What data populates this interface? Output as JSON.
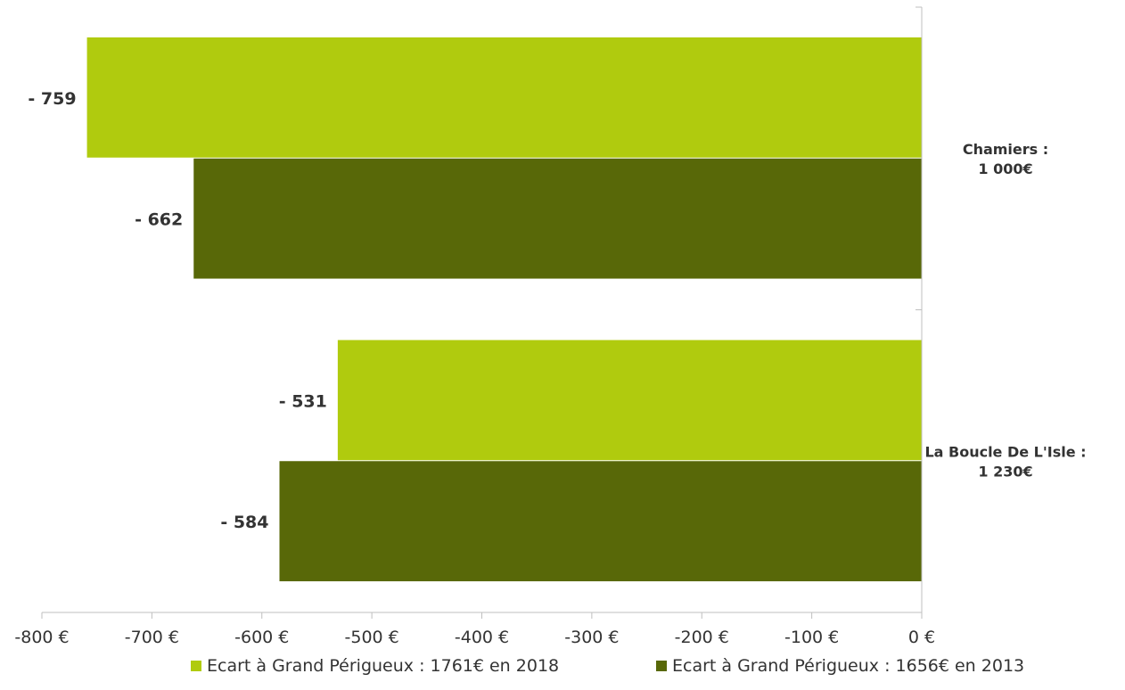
{
  "chart_data": {
    "type": "bar",
    "orientation": "horizontal",
    "categories": [
      "Chamiers :\n1 000€",
      "La Boucle De L'Isle :\n1 230€"
    ],
    "series": [
      {
        "name": "Ecart à Grand Périgueux : 1761€ en 2018",
        "values": [
          -759,
          -531
        ],
        "labels": [
          "- 759",
          "- 531"
        ],
        "color": "#b0cb0e"
      },
      {
        "name": "Ecart à Grand Périgueux : 1656€ en 2013",
        "values": [
          -662,
          -584
        ],
        "labels": [
          "- 662",
          "- 584"
        ],
        "color": "#586808"
      }
    ],
    "xlim": [
      -800,
      0
    ],
    "xticks": [
      -800,
      -700,
      -600,
      -500,
      -400,
      -300,
      -200,
      -100,
      0
    ],
    "xtick_labels": [
      "-800 €",
      "-700 €",
      "-600 €",
      "-500 €",
      "-400 €",
      "-300 €",
      "-200 €",
      "-100 €",
      "0 €"
    ],
    "category_axis_side": "right",
    "grid": false,
    "legend_position": "bottom"
  }
}
